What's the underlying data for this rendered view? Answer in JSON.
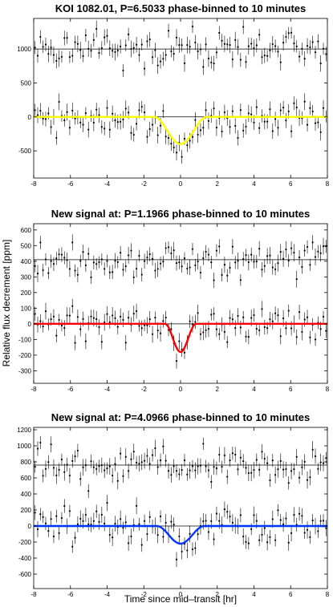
{
  "figure": {
    "ylabel": "Relative flux decrement [ppm]",
    "xlabel": "Time since mid–transit [hr]"
  },
  "chart_data": [
    {
      "type": "scatter",
      "title": "KOI 1082.01, P=6.5033 phase-binned to 10 minutes",
      "xlim": [
        -8,
        8
      ],
      "ylim": [
        -900,
        1450
      ],
      "xticks": [
        -8,
        -6,
        -4,
        -2,
        0,
        2,
        4,
        6,
        8
      ],
      "yticks": [
        -500,
        0,
        500,
        1000
      ],
      "grid": false,
      "offset": 1000,
      "depth": 400,
      "transit_half_width_hr": 1.45,
      "model_color": "#ffff00",
      "series": [
        {
          "x": [
            -8,
            -6,
            -4,
            -2,
            0,
            2,
            4,
            6,
            8
          ],
          "y": [
            1080,
            1000,
            1000,
            980,
            1000,
            970,
            1030,
            1000,
            1000
          ]
        },
        {
          "x": [
            -8,
            -6,
            -4,
            -2,
            0,
            2,
            4,
            6,
            8
          ],
          "y": [
            -20,
            30,
            10,
            -30,
            -400,
            10,
            40,
            -10,
            20
          ]
        },
        {
          "x": [
            -8,
            -1.45,
            -0.75,
            0,
            0.75,
            1.45,
            8
          ],
          "y": [
            0,
            0,
            -330,
            -400,
            -330,
            0,
            0
          ]
        }
      ]
    },
    {
      "type": "scatter",
      "title": "New signal at: P=1.1966 phase-binned to 10 minutes",
      "xlim": [
        -8,
        8
      ],
      "ylim": [
        -380,
        640
      ],
      "xticks": [
        -8,
        -6,
        -4,
        -2,
        0,
        2,
        4,
        6,
        8
      ],
      "yticks": [
        -300,
        -200,
        -100,
        0,
        100,
        200,
        300,
        400,
        500,
        600
      ],
      "grid": false,
      "offset": 410,
      "depth": 180,
      "transit_half_width_hr": 0.85,
      "model_color": "#ff0000",
      "series": [
        {
          "x": [
            -8,
            -6,
            -4,
            -2,
            0,
            2,
            4,
            6,
            8
          ],
          "y": [
            420,
            410,
            450,
            400,
            420,
            400,
            430,
            410,
            420
          ]
        },
        {
          "x": [
            -8,
            -6,
            -4,
            -2,
            0,
            2,
            4,
            6,
            8
          ],
          "y": [
            10,
            -20,
            20,
            0,
            -180,
            10,
            20,
            0,
            10
          ]
        },
        {
          "x": [
            -8,
            -0.85,
            -0.45,
            0,
            0.45,
            0.85,
            8
          ],
          "y": [
            0,
            0,
            -150,
            -180,
            -150,
            0,
            0
          ]
        }
      ]
    },
    {
      "type": "scatter",
      "title": "New signal at: P=4.0966 phase-binned to 10 minutes",
      "xlim": [
        -8,
        8
      ],
      "ylim": [
        -780,
        1230
      ],
      "xticks": [
        -8,
        -6,
        -4,
        -2,
        0,
        2,
        4,
        6,
        8
      ],
      "yticks": [
        -600,
        -400,
        -200,
        0,
        200,
        400,
        600,
        800,
        1000,
        1200
      ],
      "grid": false,
      "offset": 760,
      "depth": 220,
      "transit_half_width_hr": 1.3,
      "model_color": "#0033ff",
      "series": [
        {
          "x": [
            -8,
            -6,
            -4,
            -2,
            0,
            2,
            4,
            6,
            8
          ],
          "y": [
            780,
            760,
            800,
            740,
            760,
            780,
            760,
            760,
            770
          ]
        },
        {
          "x": [
            -8,
            -6,
            -4,
            -2,
            0,
            2,
            4,
            6,
            8
          ],
          "y": [
            0,
            20,
            -20,
            10,
            -220,
            0,
            10,
            0,
            0
          ]
        },
        {
          "x": [
            -8,
            -1.3,
            -0.7,
            0,
            0.7,
            1.3,
            8
          ],
          "y": [
            0,
            0,
            -190,
            -220,
            -190,
            0,
            0
          ]
        }
      ]
    }
  ]
}
